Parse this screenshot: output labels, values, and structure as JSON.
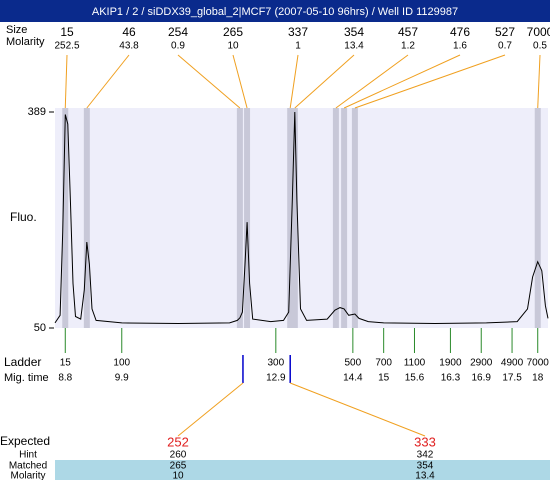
{
  "title": "AKIP1 / 2 / siDDX39_global_2|MCF7 (2007-05-10 96hrs) / Well ID 1129987",
  "peak_row_labels": [
    "Size",
    "Molarity"
  ],
  "chart_data": {
    "type": "line",
    "ylabel": "Fluo.",
    "color": "#000000",
    "xlim": [
      8.6,
      18.2
    ],
    "ylim": [
      50,
      389
    ],
    "yticks": [
      50,
      389
    ],
    "x": [
      8.6,
      8.7,
      8.75,
      8.8,
      8.85,
      8.9,
      8.95,
      9.0,
      9.1,
      9.17,
      9.22,
      9.27,
      9.32,
      9.4,
      9.9,
      11.0,
      12.0,
      12.15,
      12.2,
      12.25,
      12.3,
      12.34,
      12.39,
      12.45,
      12.8,
      13.05,
      13.15,
      13.22,
      13.27,
      13.31,
      13.38,
      13.5,
      13.9,
      14.05,
      14.15,
      14.23,
      14.32,
      14.44,
      14.52,
      14.7,
      15.0,
      16.0,
      17.0,
      17.6,
      17.8,
      17.9,
      18.0,
      18.08,
      18.15,
      18.2
    ],
    "values": [
      58,
      70,
      200,
      385,
      370,
      250,
      120,
      68,
      64,
      110,
      185,
      150,
      80,
      62,
      58,
      57,
      58,
      62,
      66,
      75,
      150,
      216,
      120,
      64,
      60,
      62,
      75,
      250,
      389,
      250,
      80,
      62,
      64,
      78,
      82,
      80,
      70,
      72,
      65,
      60,
      58,
      57,
      58,
      60,
      80,
      130,
      154,
      140,
      85,
      65
    ],
    "peaks": [
      {
        "size": 15,
        "molarity": 252.5,
        "time": 8.8
      },
      {
        "size": 46,
        "molarity": 43.8,
        "time": 9.22
      },
      {
        "size": 254,
        "molarity": 0.9,
        "time": 12.2
      },
      {
        "size": 265,
        "molarity": 10,
        "time": 12.34
      },
      {
        "size": 337,
        "molarity": 1,
        "time": 13.18
      },
      {
        "size": 354,
        "molarity": 13.4,
        "time": 13.27
      },
      {
        "size": 457,
        "molarity": 1.2,
        "time": 14.07
      },
      {
        "size": 476,
        "molarity": 1.6,
        "time": 14.23
      },
      {
        "size": 527,
        "molarity": 0.7,
        "time": 14.44
      },
      {
        "size": 7000,
        "molarity": 0.5,
        "time": 18.0
      }
    ],
    "ladder": {
      "label": "Ladder",
      "time_label": "Mig. time",
      "sizes": [
        15,
        100,
        300,
        500,
        700,
        1100,
        1900,
        2900,
        4900,
        7000
      ],
      "times": [
        8.8,
        9.9,
        12.9,
        14.4,
        15,
        15.6,
        16.3,
        16.9,
        17.5,
        18
      ]
    },
    "expected": {
      "label": "Expected",
      "values": [
        252,
        333
      ],
      "times": [
        12.26,
        13.18
      ],
      "rows": [
        {
          "label": "Hint",
          "values": [
            260,
            342
          ]
        },
        {
          "label": "Matched",
          "values": [
            265,
            354
          ]
        },
        {
          "label": "Molarity",
          "values": [
            10,
            13.4
          ]
        }
      ]
    }
  }
}
